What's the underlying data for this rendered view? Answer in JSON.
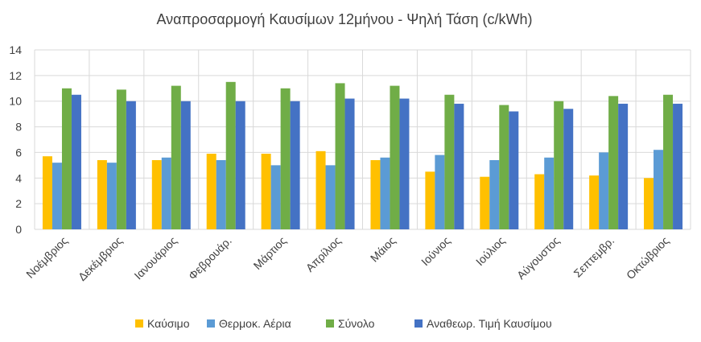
{
  "chart_data": {
    "type": "bar",
    "title": "Αναπροσαρμογή Καυσίμων 12μήνου - Ψηλή Τάση  (c/kWh)",
    "xlabel": "",
    "ylabel": "",
    "ylim": [
      0,
      14
    ],
    "yticks": [
      0,
      2,
      4,
      6,
      8,
      10,
      12,
      14
    ],
    "grid": true,
    "legend_position": "bottom",
    "categories": [
      "Νοέμβριος",
      "Δεκέμβριος",
      "Ιανουάριος",
      "Φεβρουάρ.",
      "Μάρτιος",
      "Απρίλιος",
      "Μάιος",
      "Ιούνιος",
      "Ιούλιος",
      "Αύγουστος",
      "Σεπτεμβρ.",
      "Οκτώβριος"
    ],
    "series": [
      {
        "name": "Καύσιμο",
        "color": "#FFC000",
        "values": [
          5.7,
          5.4,
          5.4,
          5.9,
          5.9,
          6.1,
          5.4,
          4.5,
          4.1,
          4.3,
          4.2,
          4.0
        ]
      },
      {
        "name": "Θερμοκ. Αέρια",
        "color": "#5B9BD5",
        "values": [
          5.2,
          5.2,
          5.6,
          5.4,
          5.0,
          5.0,
          5.6,
          5.8,
          5.4,
          5.6,
          6.0,
          6.2
        ]
      },
      {
        "name": "Σύνολο",
        "color": "#70AD47",
        "values": [
          11.0,
          10.9,
          11.2,
          11.5,
          11.0,
          11.4,
          11.2,
          10.5,
          9.7,
          10.0,
          10.4,
          10.5
        ]
      },
      {
        "name": "Αναθεωρ. Τιμή Καυσίμου",
        "color": "#4472C4",
        "values": [
          10.5,
          10.0,
          10.0,
          10.0,
          10.0,
          10.2,
          10.2,
          9.8,
          9.2,
          9.4,
          9.8,
          9.8
        ]
      }
    ]
  }
}
